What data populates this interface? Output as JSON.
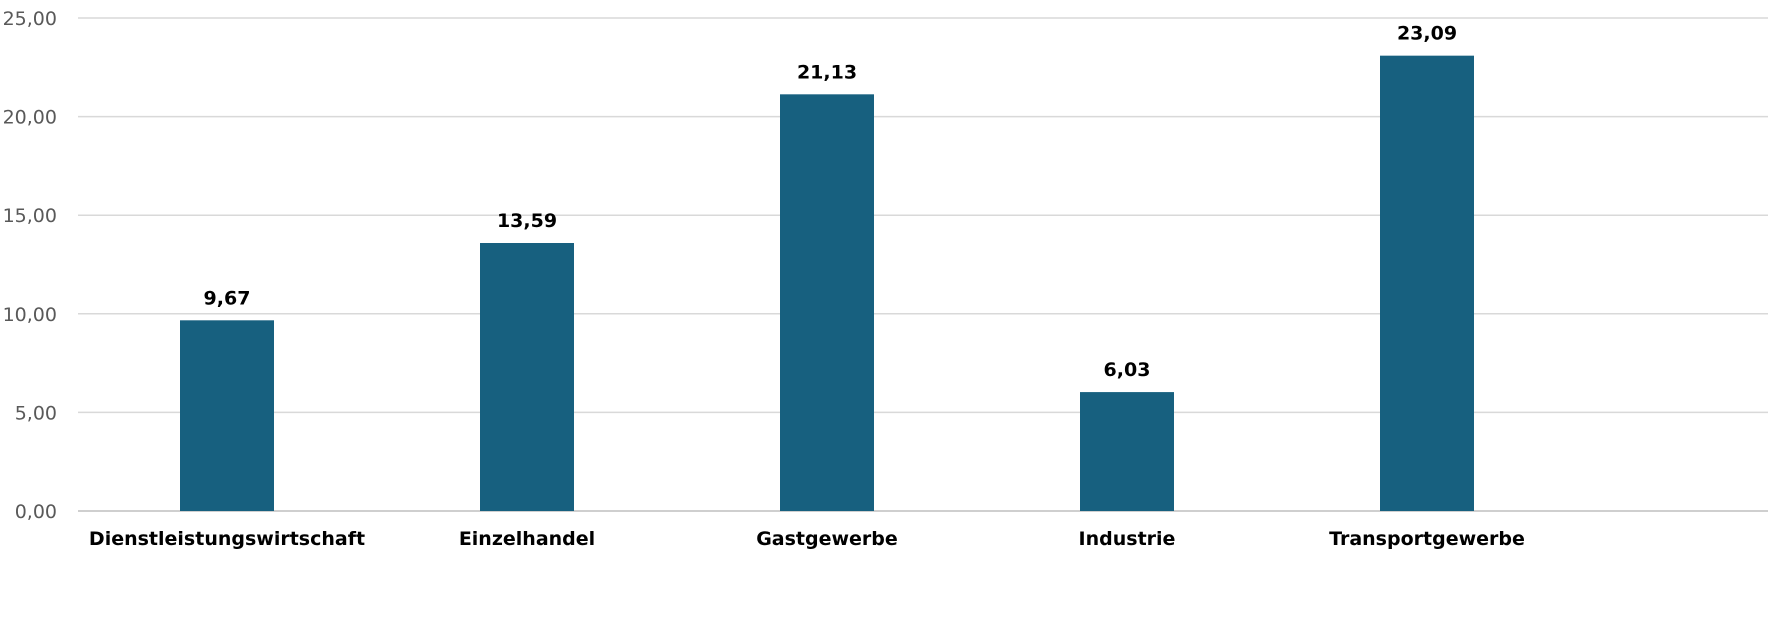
{
  "chart_data": {
    "type": "bar",
    "categories": [
      "Dienstleistungswirtschaft",
      "Einzelhandel",
      "Gastgewerbe",
      "Industrie",
      "Transportgewerbe"
    ],
    "values": [
      9.67,
      13.59,
      21.13,
      6.03,
      23.09
    ],
    "value_labels": [
      "9,67",
      "13,59",
      "21,13",
      "6,03",
      "23,09"
    ],
    "y_ticks": [
      "0,00",
      "5,00",
      "10,00",
      "15,00",
      "20,00",
      "25,00"
    ],
    "y_tick_values": [
      0,
      5,
      10,
      15,
      20,
      25
    ],
    "ylim": [
      0,
      25
    ],
    "title": "",
    "xlabel": "",
    "ylabel": "",
    "grid": true,
    "legend": "none",
    "bar_color": "#17607f",
    "grid_color": "#d9d9d9"
  }
}
